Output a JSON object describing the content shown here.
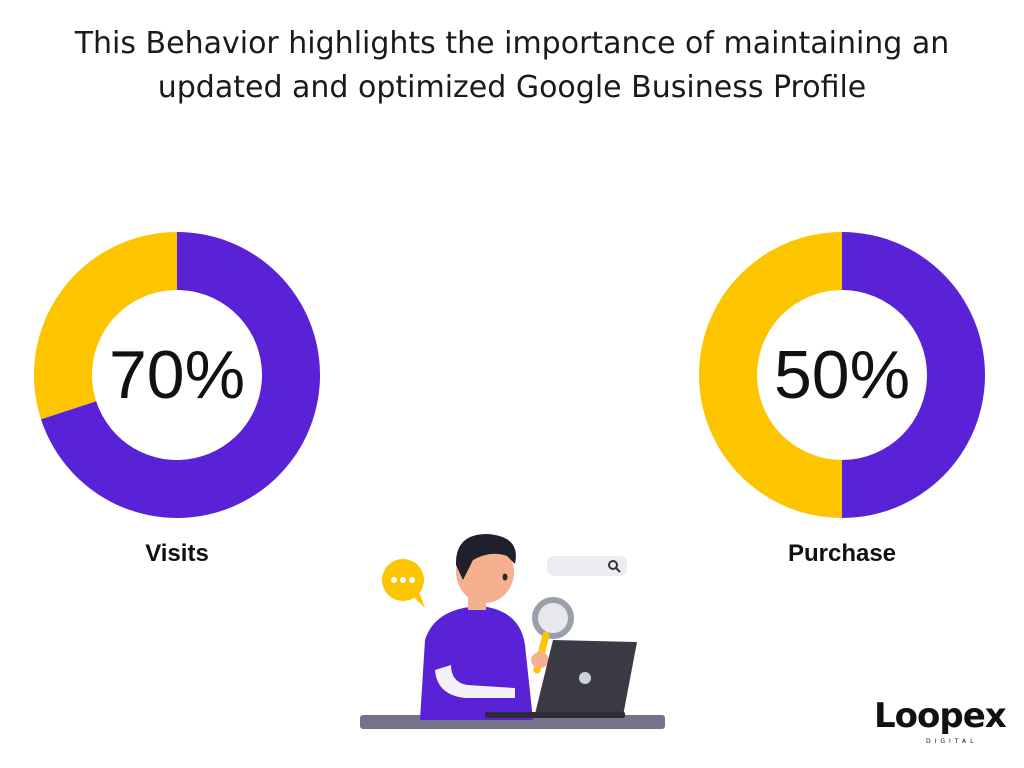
{
  "title_lines": [
    "This Behavior highlights the importance of maintaining an",
    "updated and optimized Google Business Profile"
  ],
  "colors": {
    "primary": "#5a22d6",
    "secondary": "#fdc400",
    "text": "#111111"
  },
  "chart_data": [
    {
      "type": "pie",
      "variant": "donut",
      "category": "Visits",
      "center_label": "70%",
      "slices": [
        {
          "value": 70,
          "color": "#5a22d6"
        },
        {
          "value": 30,
          "color": "#fdc400"
        }
      ]
    },
    {
      "type": "pie",
      "variant": "donut",
      "category": "Purchase",
      "center_label": "50%",
      "slices": [
        {
          "value": 50,
          "color": "#5a22d6"
        },
        {
          "value": 50,
          "color": "#fdc400"
        }
      ]
    }
  ],
  "illustration": {
    "description_icon": "person-searching-laptop-icon",
    "chat_bubble_icon": "chat-bubble-icon",
    "search_bar_icon": "search-icon"
  },
  "logo": {
    "word": "Loopex",
    "sub": "DIGITAL"
  }
}
